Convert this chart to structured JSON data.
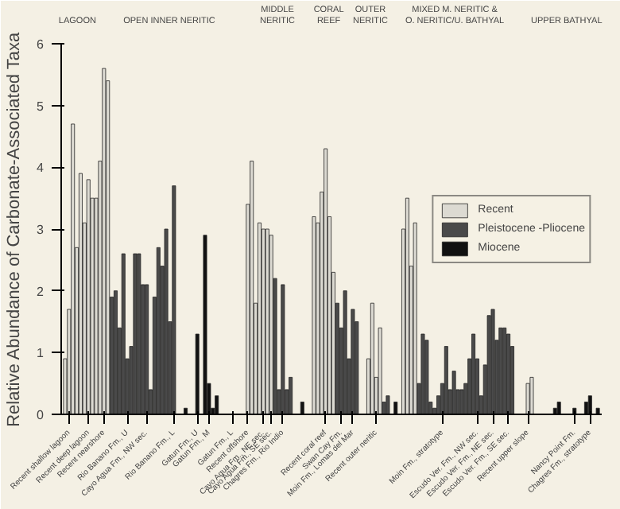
{
  "chart_data": {
    "type": "bar",
    "ylabel": "Relative Abundance of Carbonate-Associated Taxa",
    "ylim": [
      0,
      6
    ],
    "yticks": [
      0,
      1,
      2,
      3,
      4,
      5,
      6
    ],
    "grid": false,
    "legend": "right",
    "annotations": [
      "LAGOON",
      "OPEN INNER NERITIC",
      "MIDDLE\nNERITIC",
      "CORAL\nREEF",
      "OUTER\nNERITIC",
      "MIXED M. NERITIC &\nO. NERITIC/U. BATHYAL",
      "UPPER BATHYAL"
    ],
    "categories": [
      null,
      "Recent shallow lagoon",
      null,
      null,
      null,
      null,
      "Recent deep lagoon",
      null,
      null,
      null,
      "Recent nearshore",
      null,
      null,
      null,
      null,
      null,
      "Rio Banano Fm., U",
      null,
      null,
      null,
      null,
      "Cayo Agua Fm., NW sec.",
      null,
      null,
      null,
      null,
      null,
      null,
      "Rio Banano Fm., L",
      null,
      null,
      null,
      null,
      null,
      "Gatun Fm., U",
      null,
      null,
      "Gatun Fm., M",
      null,
      null,
      null,
      null,
      null,
      "Gatun Fm., L",
      null,
      null,
      null,
      "Recent offshore",
      null,
      null,
      null,
      "Cayo Agua Fm., NE sec.",
      null,
      "Cayo Agua Fm., SE sec.",
      null,
      null,
      "Chagres Fm., Rio Indio",
      null,
      null,
      null,
      null,
      null,
      null,
      null,
      null,
      null,
      null,
      "Recent coral reef",
      null,
      null,
      null,
      "Swan Cay Fm.",
      null,
      null,
      "Moin Fm., Lomas del Mar",
      null,
      null,
      null,
      null,
      null,
      "Recent outer neritic",
      null,
      null,
      null,
      null,
      null,
      null,
      null,
      null,
      null,
      null,
      null,
      null,
      null,
      null,
      null,
      null,
      "Moin Fm., stratotype",
      null,
      null,
      null,
      null,
      null,
      null,
      null,
      null,
      "Escudo Ver. Fm., NW sec.",
      null,
      null,
      null,
      "Escudo Ver. Fm., NE sec.",
      null,
      null,
      null,
      "Escudo Ver. Fm., SE sec.",
      null,
      null,
      null,
      null,
      "Recent upper slope",
      null,
      null,
      null,
      null,
      null,
      null,
      null,
      null,
      null,
      null,
      null,
      "Nancy Point Fm.",
      null,
      null,
      null,
      "Chagres Fm., stratotype",
      null,
      null
    ],
    "series": [
      {
        "name": "Recent",
        "color": "#dcdad2",
        "values": [
          0.9,
          1.7,
          4.7,
          2.7,
          3.9,
          3.1,
          3.8,
          3.5,
          3.5,
          4.1,
          5.6,
          5.4,
          null,
          null,
          null,
          null,
          null,
          null,
          null,
          null,
          null,
          null,
          null,
          null,
          null,
          null,
          null,
          null,
          null,
          null,
          null,
          null,
          null,
          null,
          null,
          null,
          null,
          null,
          null,
          null,
          null,
          null,
          null,
          null,
          null,
          null,
          null,
          3.4,
          4.1,
          1.8,
          3.1,
          3.0,
          3.0,
          2.9,
          null,
          null,
          null,
          null,
          null,
          null,
          null,
          null,
          null,
          null,
          3.2,
          3.1,
          3.6,
          4.3,
          3.2,
          2.3,
          null,
          null,
          null,
          null,
          null,
          null,
          null,
          null,
          0.9,
          1.8,
          0.6,
          1.4,
          null,
          null,
          null,
          null,
          null,
          3.0,
          3.5,
          2.4,
          3.1,
          null,
          null,
          null,
          null,
          null,
          null,
          null,
          null,
          null,
          null,
          null,
          null,
          null,
          null,
          null,
          null,
          null,
          null,
          null,
          null,
          null,
          null,
          null,
          null,
          null,
          null,
          null,
          null,
          0.5,
          0.6,
          null,
          null,
          null,
          null,
          null,
          null,
          null,
          null,
          null,
          null,
          null,
          null,
          null,
          null,
          null,
          null,
          null
        ]
      },
      {
        "name": "Pleistocene -Pliocene",
        "color": "#4a4a4a",
        "values": [
          null,
          null,
          null,
          null,
          null,
          null,
          null,
          null,
          null,
          null,
          null,
          null,
          1.9,
          2.0,
          1.4,
          2.6,
          0.9,
          1.1,
          2.6,
          2.6,
          2.1,
          2.1,
          0.4,
          1.9,
          2.7,
          2.4,
          3.0,
          1.5,
          3.7,
          null,
          null,
          null,
          null,
          null,
          null,
          null,
          null,
          null,
          null,
          null,
          null,
          null,
          null,
          null,
          null,
          null,
          null,
          null,
          null,
          null,
          null,
          null,
          null,
          null,
          2.2,
          0.4,
          2.1,
          0.4,
          0.6,
          null,
          null,
          null,
          null,
          null,
          null,
          null,
          null,
          null,
          null,
          null,
          1.8,
          1.4,
          2.0,
          0.9,
          1.7,
          1.5,
          null,
          null,
          null,
          null,
          null,
          null,
          0.2,
          0.3,
          null,
          null,
          null,
          null,
          null,
          null,
          null,
          0.5,
          1.3,
          1.2,
          0.2,
          0.1,
          0.3,
          0.5,
          1.1,
          0.4,
          0.7,
          0.4,
          0.4,
          0.5,
          0.9,
          1.3,
          0.9,
          0.3,
          0.8,
          1.6,
          1.7,
          1.2,
          1.4,
          1.4,
          1.3,
          1.1,
          null,
          null,
          null,
          null,
          null,
          null,
          null,
          null,
          null,
          null,
          null,
          null,
          null,
          null,
          null,
          null,
          null,
          null,
          null,
          null,
          null,
          null
        ]
      },
      {
        "name": "Miocene",
        "color": "#111111",
        "values": [
          null,
          null,
          null,
          null,
          null,
          null,
          null,
          null,
          null,
          null,
          null,
          null,
          null,
          null,
          null,
          null,
          null,
          null,
          null,
          null,
          null,
          null,
          null,
          null,
          null,
          null,
          null,
          null,
          null,
          null,
          null,
          0.1,
          null,
          null,
          1.3,
          null,
          2.9,
          0.5,
          0.1,
          0.3,
          null,
          null,
          null,
          null,
          null,
          null,
          null,
          null,
          null,
          null,
          null,
          null,
          null,
          null,
          null,
          null,
          null,
          null,
          null,
          null,
          null,
          0.2,
          null,
          null,
          null,
          null,
          null,
          null,
          null,
          null,
          null,
          null,
          null,
          null,
          null,
          null,
          null,
          null,
          null,
          null,
          null,
          null,
          null,
          null,
          null,
          0.2,
          null,
          null,
          null,
          null,
          null,
          null,
          null,
          null,
          null,
          null,
          null,
          null,
          null,
          null,
          null,
          null,
          null,
          null,
          null,
          null,
          null,
          null,
          null,
          null,
          null,
          null,
          null,
          null,
          null,
          null,
          null,
          null,
          null,
          null,
          null,
          null,
          null,
          null,
          null,
          null,
          0.1,
          0.2,
          null,
          null,
          null,
          0.1,
          null,
          null,
          0.2,
          0.3,
          null,
          0.1
        ]
      }
    ]
  }
}
